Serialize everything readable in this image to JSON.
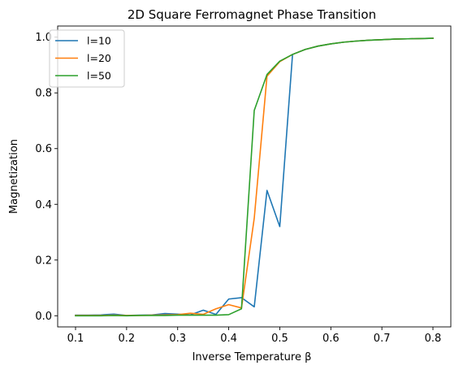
{
  "chart_data": {
    "type": "line",
    "title": "2D Square Ferromagnet Phase Transition",
    "xlabel": "Inverse Temperature β",
    "ylabel": "Magnetization",
    "xlim": [
      0.065,
      0.835
    ],
    "ylim": [
      -0.04,
      1.04
    ],
    "xticks": [
      0.1,
      0.2,
      0.3,
      0.4,
      0.5,
      0.6,
      0.7,
      0.8
    ],
    "xtick_labels": [
      "0.1",
      "0.2",
      "0.3",
      "0.4",
      "0.5",
      "0.6",
      "0.7",
      "0.8"
    ],
    "yticks": [
      0.0,
      0.2,
      0.4,
      0.6,
      0.8,
      1.0
    ],
    "ytick_labels": [
      "0.0",
      "0.2",
      "0.4",
      "0.6",
      "0.8",
      "1.0"
    ],
    "grid": false,
    "legend_position": "top-left",
    "x": [
      0.1,
      0.125,
      0.15,
      0.175,
      0.2,
      0.225,
      0.25,
      0.275,
      0.3,
      0.325,
      0.35,
      0.375,
      0.4,
      0.425,
      0.45,
      0.475,
      0.5,
      0.525,
      0.55,
      0.575,
      0.6,
      0.625,
      0.65,
      0.675,
      0.7,
      0.725,
      0.75,
      0.775,
      0.8
    ],
    "series": [
      {
        "name": "l=10",
        "color": "#1f77b4",
        "values": [
          0.002,
          0.002,
          0.003,
          0.006,
          0.001,
          0.002,
          0.003,
          0.008,
          0.006,
          0.003,
          0.02,
          0.005,
          0.06,
          0.065,
          0.032,
          0.45,
          0.32,
          0.938,
          0.956,
          0.968,
          0.976,
          0.982,
          0.986,
          0.989,
          0.991,
          0.993,
          0.994,
          0.995,
          0.996
        ]
      },
      {
        "name": "l=20",
        "color": "#ff7f0e",
        "values": [
          0.001,
          0.001,
          0.001,
          0.002,
          0.001,
          0.001,
          0.002,
          0.003,
          0.004,
          0.009,
          0.005,
          0.025,
          0.04,
          0.028,
          0.35,
          0.86,
          0.912,
          0.938,
          0.956,
          0.968,
          0.976,
          0.982,
          0.986,
          0.989,
          0.991,
          0.993,
          0.994,
          0.995,
          0.996
        ]
      },
      {
        "name": "l=50",
        "color": "#2ca02c",
        "values": [
          0.0,
          0.0,
          0.0,
          0.001,
          0.0,
          0.001,
          0.001,
          0.001,
          0.002,
          0.002,
          0.002,
          0.002,
          0.004,
          0.025,
          0.737,
          0.866,
          0.914,
          0.938,
          0.956,
          0.968,
          0.976,
          0.982,
          0.986,
          0.989,
          0.991,
          0.993,
          0.994,
          0.995,
          0.996
        ]
      }
    ]
  }
}
